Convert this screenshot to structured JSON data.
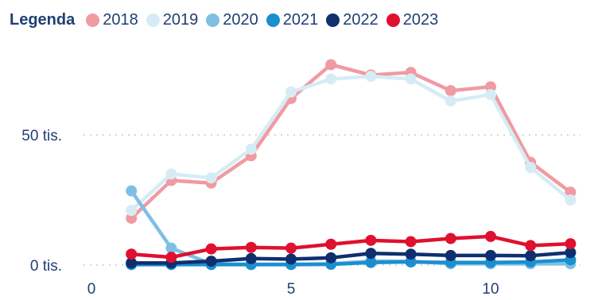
{
  "chart_data": {
    "type": "line",
    "legend_title": "Legenda",
    "legend_position": "top-left",
    "grid": true,
    "x_ticks": [
      "0",
      "5",
      "10"
    ],
    "y_ticks": [
      "0 tis.",
      "50 tis."
    ],
    "xlim": [
      0,
      12
    ],
    "ylim": [
      0,
      78
    ],
    "x": [
      1,
      2,
      3,
      4,
      5,
      6,
      7,
      8,
      9,
      10,
      11,
      12
    ],
    "series": [
      {
        "name": "2018",
        "color": "#f09aa2",
        "values": [
          18,
          32.5,
          31.5,
          42,
          64,
          77,
          73,
          74,
          67,
          68.5,
          39.5,
          28
        ]
      },
      {
        "name": "2019",
        "color": "#d6ecf5",
        "values": [
          21,
          35,
          33.5,
          44.5,
          66.5,
          71.5,
          72.5,
          71.5,
          63,
          65.5,
          37.5,
          25
        ]
      },
      {
        "name": "2020",
        "color": "#7ec0e4",
        "values": [
          28.5,
          6.5,
          0.5,
          0.3,
          0.3,
          0.5,
          1.5,
          1.5,
          0.5,
          0.5,
          0.5,
          0.5
        ]
      },
      {
        "name": "2021",
        "color": "#1a8fd0",
        "values": [
          0.2,
          0.2,
          0.2,
          0.2,
          0.2,
          0.3,
          1.0,
          1.2,
          1.0,
          1.0,
          1.2,
          2.0
        ]
      },
      {
        "name": "2022",
        "color": "#0f2f6e",
        "values": [
          0.8,
          0.8,
          1.5,
          2.5,
          2.3,
          2.8,
          4.5,
          4.2,
          3.7,
          3.7,
          3.6,
          4.8
        ]
      },
      {
        "name": "2023",
        "color": "#e0102f",
        "values": [
          4.2,
          3.0,
          6.2,
          6.8,
          6.5,
          8.0,
          9.5,
          9.0,
          10.2,
          11.0,
          7.5,
          8.2
        ]
      }
    ]
  }
}
